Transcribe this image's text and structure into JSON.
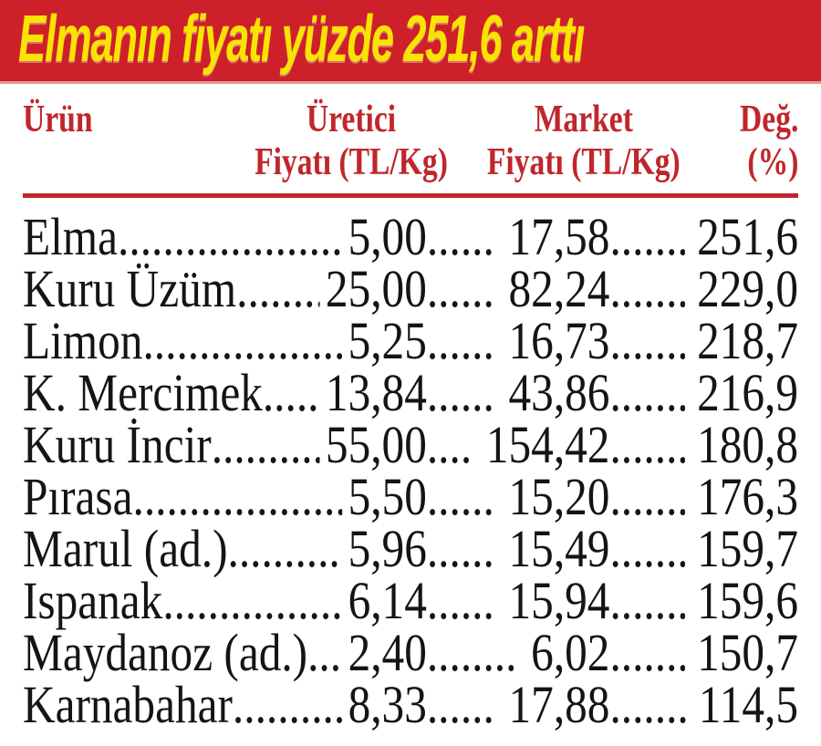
{
  "banner": {
    "title": "Elmanın fiyatı yüzde 251,6 arttı"
  },
  "table": {
    "columns": [
      {
        "line1": "Ürün",
        "line2": ""
      },
      {
        "line1": "Üretici",
        "line2": "Fiyatı (TL/Kg)"
      },
      {
        "line1": "Market",
        "line2": "Fiyatı (TL/Kg)"
      },
      {
        "line1": "Değ.",
        "line2": "(%)"
      }
    ],
    "rows": [
      {
        "product": "Elma",
        "producer_price": "5,00",
        "market_price": "17,58",
        "change_pct": "251,6"
      },
      {
        "product": "Kuru Üzüm",
        "producer_price": "25,00",
        "market_price": "82,24",
        "change_pct": "229,0"
      },
      {
        "product": "Limon",
        "producer_price": "5,25",
        "market_price": "16,73",
        "change_pct": "218,7"
      },
      {
        "product": "K. Mercimek",
        "producer_price": "13,84",
        "market_price": "43,86",
        "change_pct": "216,9"
      },
      {
        "product": "Kuru İncir",
        "producer_price": "55,00",
        "market_price": "154,42",
        "change_pct": "180,8"
      },
      {
        "product": "Pırasa",
        "producer_price": "5,50",
        "market_price": "15,20",
        "change_pct": "176,3"
      },
      {
        "product": "Marul (ad.)",
        "producer_price": "5,96",
        "market_price": "15,49",
        "change_pct": "159,7"
      },
      {
        "product": "Ispanak",
        "producer_price": "6,14",
        "market_price": "15,94",
        "change_pct": "159,6"
      },
      {
        "product": "Maydanoz (ad.)",
        "producer_price": "2,40",
        "market_price": "6,02",
        "change_pct": "150,7"
      },
      {
        "product": "Karnabahar",
        "producer_price": "8,33",
        "market_price": "17,88",
        "change_pct": "114,5"
      }
    ]
  },
  "colors": {
    "banner_bg": "#cd202b",
    "banner_text": "#f8e400",
    "header_text": "#c0262c",
    "body_text": "#171310"
  },
  "chart_data": {
    "type": "table",
    "title": "Elmanın fiyatı yüzde 251,6 arttı",
    "columns": [
      "Ürün",
      "Üretici Fiyatı (TL/Kg)",
      "Market Fiyatı (TL/Kg)",
      "Değ. (%)"
    ],
    "rows": [
      [
        "Elma",
        5.0,
        17.58,
        251.6
      ],
      [
        "Kuru Üzüm",
        25.0,
        82.24,
        229.0
      ],
      [
        "Limon",
        5.25,
        16.73,
        218.7
      ],
      [
        "K. Mercimek",
        13.84,
        43.86,
        216.9
      ],
      [
        "Kuru İncir",
        55.0,
        154.42,
        180.8
      ],
      [
        "Pırasa",
        5.5,
        15.2,
        176.3
      ],
      [
        "Marul (ad.)",
        5.96,
        15.49,
        159.7
      ],
      [
        "Ispanak",
        6.14,
        15.94,
        159.6
      ],
      [
        "Maydanoz (ad.)",
        2.4,
        6.02,
        150.7
      ],
      [
        "Karnabahar",
        8.33,
        17.88,
        114.5
      ]
    ]
  }
}
